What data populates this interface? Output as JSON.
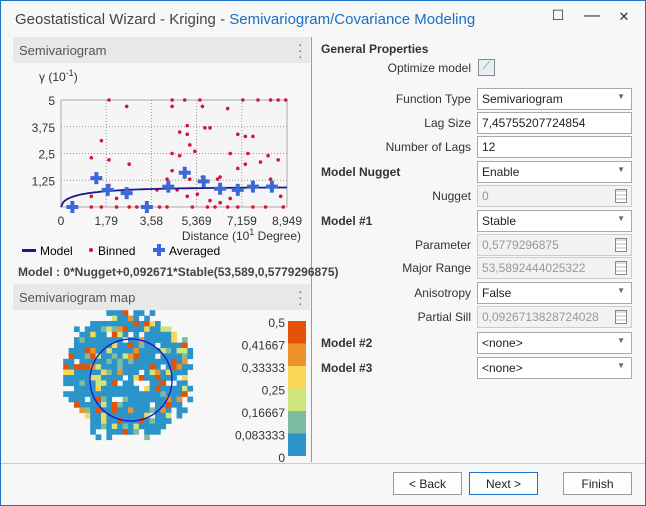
{
  "window": {
    "title": "Geostatistical Wizard - Kriging - ",
    "subtitle": "Semivariogram/Covariance Modeling",
    "min": "—",
    "max": "☐",
    "close": "✕"
  },
  "semivariogram": {
    "header": "Semivariogram",
    "ylabel": "γ (10",
    "ysup": "-1",
    "yclose": ")",
    "xlabel": "Distance (10",
    "xsup": "1",
    "xclose": " Degree)",
    "legend": {
      "model": "Model",
      "binned": "Binned",
      "averaged": "Averaged"
    },
    "formula": "Model : 0*Nugget+0,092671*Stable(53,589,0,5779296875)"
  },
  "chart_data": {
    "type": "scatter",
    "xlim": [
      0,
      8.949
    ],
    "ylim": [
      0,
      5
    ],
    "xticks": [
      "0",
      "1,79",
      "3,58",
      "5,369",
      "7,159",
      "8,949"
    ],
    "xtick_values": [
      0,
      1.79,
      3.58,
      5.369,
      7.159,
      8.949
    ],
    "yticks": [
      "1,25",
      "2,5",
      "3,75",
      "5"
    ],
    "ytick_values": [
      1.25,
      2.5,
      3.75,
      5
    ],
    "model": {
      "nugget": 0,
      "partial_sill": 0.92671,
      "range": 5.3589,
      "parameter": 0.5779
    },
    "averaged": [
      [
        0.45,
        0
      ],
      [
        1.4,
        1.35
      ],
      [
        1.85,
        0.8
      ],
      [
        2.6,
        0.65
      ],
      [
        3.4,
        0
      ],
      [
        4.25,
        0.95
      ],
      [
        4.9,
        1.6
      ],
      [
        5.65,
        1.2
      ],
      [
        6.3,
        0.85
      ],
      [
        7.0,
        0.8
      ],
      [
        7.6,
        0.95
      ],
      [
        8.35,
        0.95
      ]
    ],
    "binned": [
      [
        1.2,
        2.3
      ],
      [
        1.6,
        3.1
      ],
      [
        1.9,
        5
      ],
      [
        1.9,
        2.2
      ],
      [
        1.9,
        1.0
      ],
      [
        2.2,
        0.4
      ],
      [
        2.6,
        4.7
      ],
      [
        2.7,
        2.0
      ],
      [
        2.7,
        0
      ],
      [
        3.0,
        0
      ],
      [
        1.2,
        0.5
      ],
      [
        1.2,
        0
      ],
      [
        1.6,
        0
      ],
      [
        2.2,
        0
      ],
      [
        3.8,
        0.8
      ],
      [
        3.9,
        0
      ],
      [
        4.2,
        1.3
      ],
      [
        4.4,
        5
      ],
      [
        4.4,
        4.7
      ],
      [
        4.4,
        2.5
      ],
      [
        4.4,
        1.7
      ],
      [
        4.2,
        0
      ],
      [
        4.6,
        0.8
      ],
      [
        4.7,
        3.5
      ],
      [
        4.7,
        2.4
      ],
      [
        4.9,
        5
      ],
      [
        5.0,
        3.8
      ],
      [
        5.0,
        3.4
      ],
      [
        5.1,
        2.9
      ],
      [
        5.1,
        1.3
      ],
      [
        5.0,
        0.5
      ],
      [
        5.3,
        2.6
      ],
      [
        5.4,
        0.6
      ],
      [
        5.5,
        5
      ],
      [
        5.6,
        4.7
      ],
      [
        5.6,
        1.4
      ],
      [
        5.7,
        3.7
      ],
      [
        5.9,
        3.7
      ],
      [
        5.8,
        0
      ],
      [
        5.9,
        0.3
      ],
      [
        6.2,
        1.3
      ],
      [
        6.3,
        1.4
      ],
      [
        6.3,
        0.2
      ],
      [
        6.6,
        4.6
      ],
      [
        6.7,
        2.5
      ],
      [
        6.7,
        0.4
      ],
      [
        6.6,
        0
      ],
      [
        7.0,
        3.4
      ],
      [
        7.0,
        1.8
      ],
      [
        7.0,
        0
      ],
      [
        7.2,
        5
      ],
      [
        7.3,
        3.3
      ],
      [
        7.3,
        2.0
      ],
      [
        7.4,
        2.5
      ],
      [
        7.6,
        3.3
      ],
      [
        7.8,
        5
      ],
      [
        7.9,
        2.1
      ],
      [
        8.2,
        2.4
      ],
      [
        8.3,
        5
      ],
      [
        8.3,
        1.3
      ],
      [
        8.6,
        5
      ],
      [
        8.6,
        2.2
      ],
      [
        8.7,
        0.5
      ],
      [
        8.9,
        5
      ],
      [
        8.8,
        0
      ],
      [
        7.6,
        0
      ],
      [
        8.1,
        0
      ],
      [
        6.1,
        0
      ],
      [
        5.2,
        0
      ]
    ]
  },
  "map": {
    "header": "Semivariogram map",
    "legend": [
      "0,5",
      "0,41667",
      "0,33333",
      "0,25",
      "0,16667",
      "0,083333",
      "0"
    ],
    "colors": [
      "#e35205",
      "#ee922c",
      "#f7d755",
      "#cfe47c",
      "#7dbca0",
      "#2b95c9"
    ]
  },
  "props": {
    "general": "General Properties",
    "optimize": "Optimize model",
    "function_type": {
      "label": "Function Type",
      "value": "Semivariogram"
    },
    "lag_size": {
      "label": "Lag Size",
      "value": "7,45755207724854"
    },
    "num_lags": {
      "label": "Number of Lags",
      "value": "12"
    },
    "model_nugget": {
      "label": "Model Nugget",
      "value": "Enable"
    },
    "nugget": {
      "label": "Nugget",
      "value": "0"
    },
    "model1": {
      "label": "Model #1",
      "value": "Stable"
    },
    "parameter": {
      "label": "Parameter",
      "value": "0,5779296875"
    },
    "major_range": {
      "label": "Major Range",
      "value": "53,5892444025322"
    },
    "anisotropy": {
      "label": "Anisotropy",
      "value": "False"
    },
    "partial_sill": {
      "label": "Partial Sill",
      "value": "0,0926713828724028"
    },
    "model2": {
      "label": "Model #2",
      "value": "<none>"
    },
    "model3": {
      "label": "Model #3",
      "value": "<none>"
    }
  },
  "footer": {
    "back": "< Back",
    "next": "Next >",
    "finish": "Finish"
  }
}
